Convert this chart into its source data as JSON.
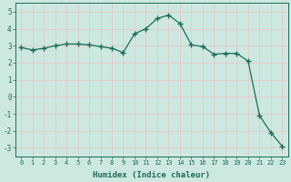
{
  "x": [
    0,
    1,
    2,
    3,
    4,
    5,
    6,
    7,
    8,
    9,
    10,
    11,
    12,
    13,
    14,
    15,
    16,
    17,
    18,
    19,
    20,
    21,
    22,
    23
  ],
  "y": [
    2.9,
    2.75,
    2.85,
    3.0,
    3.1,
    3.1,
    3.05,
    2.95,
    2.85,
    2.6,
    3.7,
    4.0,
    4.6,
    4.8,
    4.3,
    3.05,
    2.95,
    2.5,
    2.55,
    2.55,
    2.1,
    -1.1,
    -2.1,
    -2.9
  ],
  "line_color": "#1a6b5a",
  "marker": "+",
  "marker_size": 4.0,
  "line_width": 0.9,
  "xlabel": "Humidex (Indice chaleur)",
  "xlabel_fontsize": 6.5,
  "background_color": "#cce8e0",
  "grid_color": "#e8c8c8",
  "tick_color": "#1a6b5a",
  "xlim": [
    -0.5,
    23.5
  ],
  "ylim": [
    -3.5,
    5.5
  ],
  "yticks": [
    -3,
    -2,
    -1,
    0,
    1,
    2,
    3,
    4,
    5
  ],
  "xticks": [
    0,
    1,
    2,
    3,
    4,
    5,
    6,
    7,
    8,
    9,
    10,
    11,
    12,
    13,
    14,
    15,
    16,
    17,
    18,
    19,
    20,
    21,
    22,
    23
  ]
}
